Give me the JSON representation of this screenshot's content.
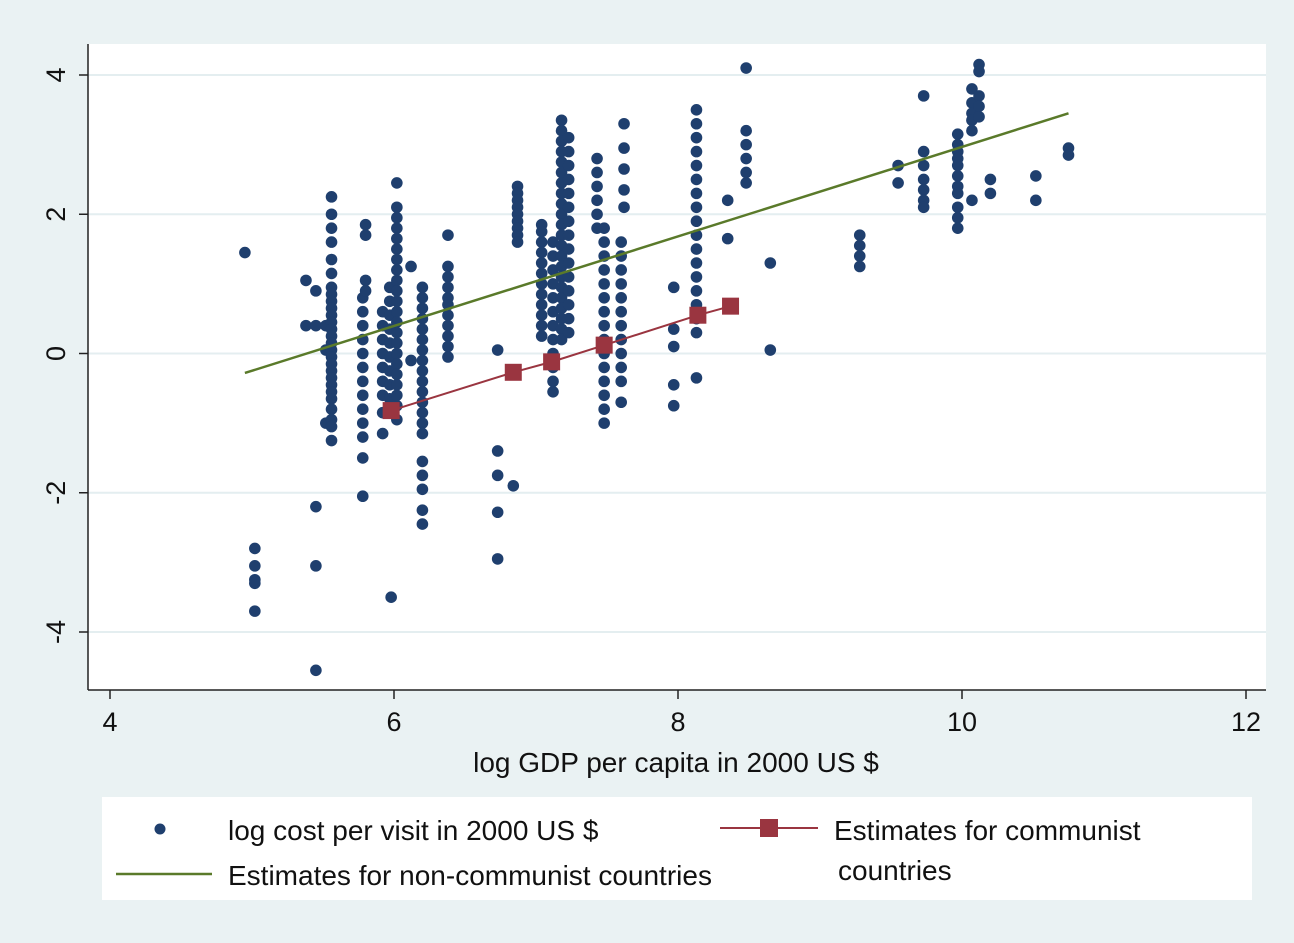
{
  "chart_data": {
    "type": "scatter",
    "title": "",
    "xlabel": "log GDP per capita in 2000 US $",
    "ylabel": "",
    "xlim": [
      4,
      12
    ],
    "ylim": [
      -4.8,
      4.4
    ],
    "x_ticks": [
      4,
      6,
      8,
      10,
      12
    ],
    "y_ticks": [
      -4,
      -2,
      0,
      2,
      4
    ],
    "grid": "horizontal",
    "legend_position": "bottom",
    "colors": {
      "scatter": "#1f3f6e",
      "non_communist_line": "#5a7a2a",
      "communist_line": "#9a3540",
      "plot_bg": "#ffffff",
      "outer_bg": "#eaf2f3",
      "grid": "#e4eef0"
    },
    "scatter": {
      "name": "log cost per visit in 2000 US $",
      "columns": [
        {
          "x": 4.95,
          "y": [
            1.45
          ]
        },
        {
          "x": 5.02,
          "y": [
            -2.8,
            -3.05,
            -3.25,
            -3.3,
            -3.7
          ]
        },
        {
          "x": 5.38,
          "y": [
            1.05,
            0.4
          ]
        },
        {
          "x": 5.45,
          "y": [
            0.9,
            0.4,
            -2.2,
            -3.05,
            -4.55
          ]
        },
        {
          "x": 5.52,
          "y": [
            0.4,
            0.05,
            -1.0
          ]
        },
        {
          "x": 5.56,
          "y": [
            2.25,
            2.0,
            1.8,
            1.6,
            1.35,
            1.15,
            0.95,
            0.85,
            0.75,
            0.65,
            0.55,
            0.45,
            0.35,
            0.25,
            0.15,
            0.05,
            -0.05,
            -0.15,
            -0.25,
            -0.35,
            -0.45,
            -0.55,
            -0.65,
            -0.8,
            -0.95,
            -1.05,
            -1.25
          ]
        },
        {
          "x": 5.78,
          "y": [
            0.8,
            0.6,
            0.4,
            0.2,
            0.0,
            -0.2,
            -0.4,
            -0.6,
            -0.8,
            -1.0,
            -1.2,
            -1.5,
            -2.05
          ]
        },
        {
          "x": 5.8,
          "y": [
            1.85,
            1.7,
            1.05,
            0.9
          ]
        },
        {
          "x": 5.92,
          "y": [
            0.6,
            0.4,
            0.2,
            0.0,
            -0.2,
            -0.4,
            -0.6,
            -0.85,
            -1.15
          ]
        },
        {
          "x": 5.97,
          "y": [
            0.95,
            0.75,
            0.55,
            0.35,
            0.15,
            -0.05,
            -0.25,
            -0.45,
            -0.65
          ]
        },
        {
          "x": 5.98,
          "y": [
            -3.5
          ]
        },
        {
          "x": 6.02,
          "y": [
            2.45,
            2.1,
            1.95,
            1.8,
            1.65,
            1.5,
            1.35,
            1.2,
            1.05,
            0.9,
            0.75,
            0.6,
            0.45,
            0.3,
            0.15,
            0.0,
            -0.15,
            -0.3,
            -0.45,
            -0.6,
            -0.75,
            -0.95
          ]
        },
        {
          "x": 6.12,
          "y": [
            1.25,
            -0.1
          ]
        },
        {
          "x": 6.2,
          "y": [
            0.95,
            0.8,
            0.65,
            0.5,
            0.35,
            0.2,
            0.05,
            -0.1,
            -0.25,
            -0.4,
            -0.55,
            -0.7,
            -0.85,
            -1.0,
            -1.15,
            -1.55,
            -1.75,
            -1.95,
            -2.25,
            -2.45
          ]
        },
        {
          "x": 6.38,
          "y": [
            1.7,
            1.25,
            1.1,
            0.95,
            0.8,
            0.7,
            0.55,
            0.4,
            0.25,
            0.1,
            -0.05
          ]
        },
        {
          "x": 6.73,
          "y": [
            0.05,
            -1.4,
            -1.75,
            -2.28,
            -2.95
          ]
        },
        {
          "x": 6.84,
          "y": [
            -1.9
          ]
        },
        {
          "x": 6.87,
          "y": [
            2.4,
            2.3,
            2.2,
            2.1,
            2.0,
            1.9,
            1.8,
            1.7,
            1.6
          ]
        },
        {
          "x": 7.04,
          "y": [
            1.85,
            1.75,
            1.6,
            1.45,
            1.3,
            1.15,
            1.0,
            0.85,
            0.7,
            0.55,
            0.4,
            0.25
          ]
        },
        {
          "x": 7.12,
          "y": [
            1.6,
            1.4,
            1.2,
            1.0,
            0.8,
            0.6,
            0.4,
            0.2,
            0.0,
            -0.2,
            -0.4,
            -0.55
          ]
        },
        {
          "x": 7.18,
          "y": [
            3.35,
            3.2,
            3.05,
            2.9,
            2.75,
            2.6,
            2.45,
            2.3,
            2.15,
            2.0,
            1.85,
            1.7,
            1.55,
            1.4,
            1.25,
            1.1,
            0.95,
            0.8,
            0.65,
            0.5,
            0.35,
            0.2
          ]
        },
        {
          "x": 7.23,
          "y": [
            3.1,
            2.9,
            2.7,
            2.5,
            2.3,
            2.1,
            1.9,
            1.7,
            1.5,
            1.3,
            1.1,
            0.9,
            0.7,
            0.5,
            0.3
          ]
        },
        {
          "x": 7.43,
          "y": [
            2.8,
            2.6,
            2.4,
            2.2,
            2.0,
            1.8
          ]
        },
        {
          "x": 7.48,
          "y": [
            1.8,
            1.6,
            1.4,
            1.2,
            1.0,
            0.8,
            0.6,
            0.4,
            0.2,
            0.0,
            -0.2,
            -0.4,
            -0.6,
            -0.8,
            -1.0
          ]
        },
        {
          "x": 7.6,
          "y": [
            1.6,
            1.4,
            1.2,
            1.0,
            0.8,
            0.6,
            0.4,
            0.2,
            0.0,
            -0.2,
            -0.4,
            -0.7
          ]
        },
        {
          "x": 7.62,
          "y": [
            3.3,
            2.95,
            2.65,
            2.35,
            2.1
          ]
        },
        {
          "x": 7.97,
          "y": [
            0.95,
            0.35,
            0.1,
            -0.45,
            -0.75
          ]
        },
        {
          "x": 8.13,
          "y": [
            3.5,
            3.3,
            3.1,
            2.9,
            2.7,
            2.5,
            2.3,
            2.1,
            1.9,
            1.7,
            1.5,
            1.3,
            1.1,
            0.9,
            0.7,
            0.5,
            0.3,
            -0.35
          ]
        },
        {
          "x": 8.35,
          "y": [
            2.2,
            1.65
          ]
        },
        {
          "x": 8.48,
          "y": [
            4.1,
            3.2,
            3.0,
            2.8,
            2.6,
            2.45
          ]
        },
        {
          "x": 8.65,
          "y": [
            1.3,
            0.05
          ]
        },
        {
          "x": 9.28,
          "y": [
            1.7,
            1.55,
            1.4,
            1.25
          ]
        },
        {
          "x": 9.55,
          "y": [
            2.7,
            2.45
          ]
        },
        {
          "x": 9.73,
          "y": [
            3.7,
            2.9,
            2.7,
            2.5,
            2.35,
            2.2,
            2.1
          ]
        },
        {
          "x": 9.97,
          "y": [
            3.15,
            3.0,
            2.9,
            2.8,
            2.7,
            2.55,
            2.4,
            2.3,
            2.1,
            1.95,
            1.8
          ]
        },
        {
          "x": 10.07,
          "y": [
            3.8,
            3.6,
            3.45,
            3.35,
            3.2,
            2.2
          ]
        },
        {
          "x": 10.12,
          "y": [
            4.15,
            4.05,
            3.7,
            3.55,
            3.4
          ]
        },
        {
          "x": 10.2,
          "y": [
            2.5,
            2.3
          ]
        },
        {
          "x": 10.52,
          "y": [
            2.55,
            2.2
          ]
        },
        {
          "x": 10.75,
          "y": [
            2.95,
            2.85
          ]
        }
      ]
    },
    "series": [
      {
        "name": "Estimates for non-communist countries",
        "type": "line",
        "x": [
          4.95,
          10.75
        ],
        "y": [
          -0.28,
          3.45
        ]
      },
      {
        "name": "Estimates for communist countries",
        "type": "line-marker",
        "x": [
          5.98,
          6.84,
          7.11,
          7.48,
          8.14,
          8.37
        ],
        "y": [
          -0.82,
          -0.27,
          -0.12,
          0.12,
          0.55,
          0.68
        ]
      }
    ]
  },
  "legend": {
    "scatter_label": "log cost per visit in 2000 US $",
    "communist_label_line1": "Estimates for communist",
    "communist_label_line2": "countries",
    "non_communist_label": "Estimates for non-communist countries"
  }
}
